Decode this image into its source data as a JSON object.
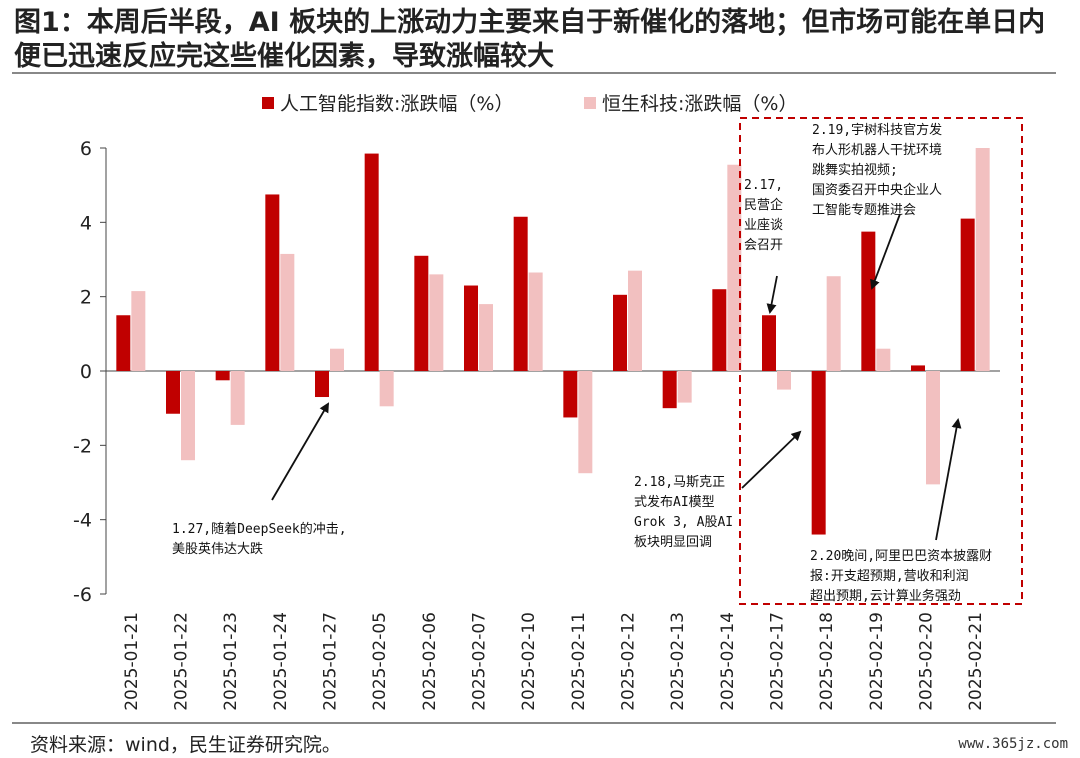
{
  "header": {
    "title": "图1：本周后半段，AI 板块的上涨动力主要来自于新催化的落地；但市场可能在单日内便已迅速反应完这些催化因素，导致涨幅较大"
  },
  "footer": {
    "source": "资料来源：wind，民生证券研究院。",
    "watermark": "www.365jz.com"
  },
  "colors": {
    "series1": "#c00000",
    "series2": "#f2c0c0",
    "highlight_box": "#c00000"
  },
  "chart_data": {
    "type": "bar",
    "title": "",
    "xlabel": "",
    "ylabel": "",
    "ylim": [
      -6,
      6
    ],
    "yticks": [
      "6",
      "4",
      "2",
      "0",
      "-2",
      "-4",
      "-6"
    ],
    "grid": false,
    "legend_position": "top",
    "categories": [
      "2025-01-21",
      "2025-01-22",
      "2025-01-23",
      "2025-01-24",
      "2025-01-27",
      "2025-02-05",
      "2025-02-06",
      "2025-02-07",
      "2025-02-10",
      "2025-02-11",
      "2025-02-12",
      "2025-02-13",
      "2025-02-14",
      "2025-02-17",
      "2025-02-18",
      "2025-02-19",
      "2025-02-20",
      "2025-02-21"
    ],
    "series": [
      {
        "name": "人工智能指数:涨跌幅（%）",
        "values": [
          1.5,
          -1.15,
          -0.25,
          4.75,
          -0.7,
          5.85,
          3.1,
          2.3,
          4.15,
          -1.25,
          2.05,
          -1.0,
          2.2,
          1.5,
          -4.4,
          3.75,
          0.15,
          4.1
        ]
      },
      {
        "name": "恒生科技:涨跌幅（%）",
        "values": [
          2.15,
          -2.4,
          -1.45,
          3.15,
          0.6,
          -0.95,
          2.6,
          1.8,
          2.65,
          -2.75,
          2.7,
          -0.85,
          5.55,
          -0.5,
          2.55,
          0.6,
          -3.05,
          6.0
        ]
      }
    ],
    "annotations": [
      {
        "lines": [
          "1.27,随着DeepSeek的冲击,",
          "美股英伟达大跌"
        ]
      },
      {
        "lines": [
          "2.17,",
          "民营企",
          "业座谈",
          "会召开"
        ]
      },
      {
        "lines": [
          "2.18,马斯克正",
          "式发布AI模型",
          "Grok 3, A股AI",
          "板块明显回调"
        ]
      },
      {
        "lines": [
          "2.19,宇树科技官方发",
          "布人形机器人干扰环境",
          "跳舞实拍视频;",
          "国资委召开中央企业人",
          "工智能专题推进会"
        ]
      },
      {
        "lines": [
          "2.20晚间,阿里巴巴资本披露财",
          "报:开支超预期,营收和利润",
          "超出预期,云计算业务强劲"
        ]
      }
    ]
  }
}
